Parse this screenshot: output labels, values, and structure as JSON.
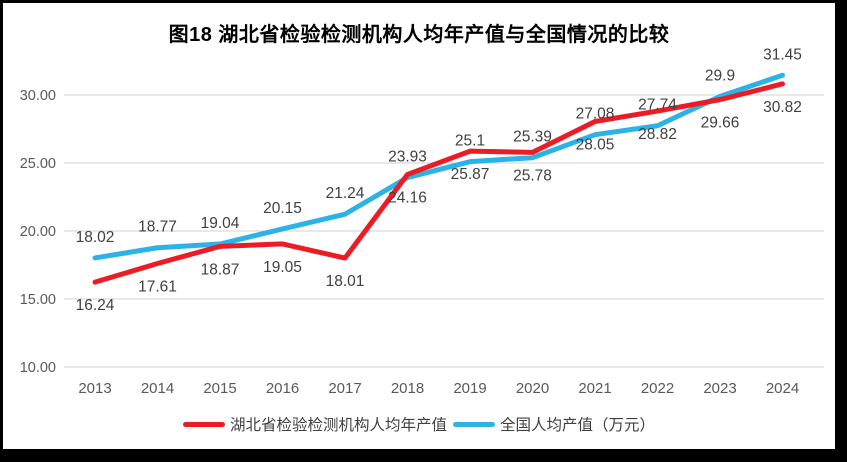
{
  "title": "图18  湖北省检验检测机构人均年产值与全国情况的比较",
  "colors": {
    "hubei_red": "#ed1c24",
    "national_blue": "#2bb3e8",
    "gridline": "#d9d9d9",
    "axis_text": "#595959",
    "data_label_text": "#404040",
    "title_text": "#000000",
    "frame_border": "#000000"
  },
  "chart_data": {
    "type": "line",
    "title": "图18  湖北省检验检测机构人均年产值与全国情况的比较",
    "categories": [
      "2013",
      "2014",
      "2015",
      "2016",
      "2017",
      "2018",
      "2019",
      "2020",
      "2021",
      "2022",
      "2023",
      "2024"
    ],
    "series": [
      {
        "key": "hubei",
        "name": "湖北省检验检测机构人均年产值",
        "color": "#ed1c24",
        "label_position": "below",
        "values": [
          16.24,
          17.61,
          18.87,
          19.05,
          18.01,
          24.16,
          25.87,
          25.78,
          28.05,
          28.82,
          29.66,
          30.82
        ]
      },
      {
        "key": "national",
        "name": "全国人均产值（万元）",
        "color": "#2bb3e8",
        "label_position": "above",
        "values": [
          18.02,
          18.77,
          19.04,
          20.15,
          21.24,
          23.93,
          25.1,
          25.39,
          27.08,
          27.74,
          29.9,
          31.45
        ]
      }
    ],
    "ylim": [
      10,
      32.5
    ],
    "yticks": [
      10,
      15,
      20,
      25,
      30
    ],
    "ytick_decimals": 2,
    "grid": "horizontal",
    "data_labels": true,
    "legend_position": "bottom",
    "xlabel": "",
    "ylabel": ""
  }
}
